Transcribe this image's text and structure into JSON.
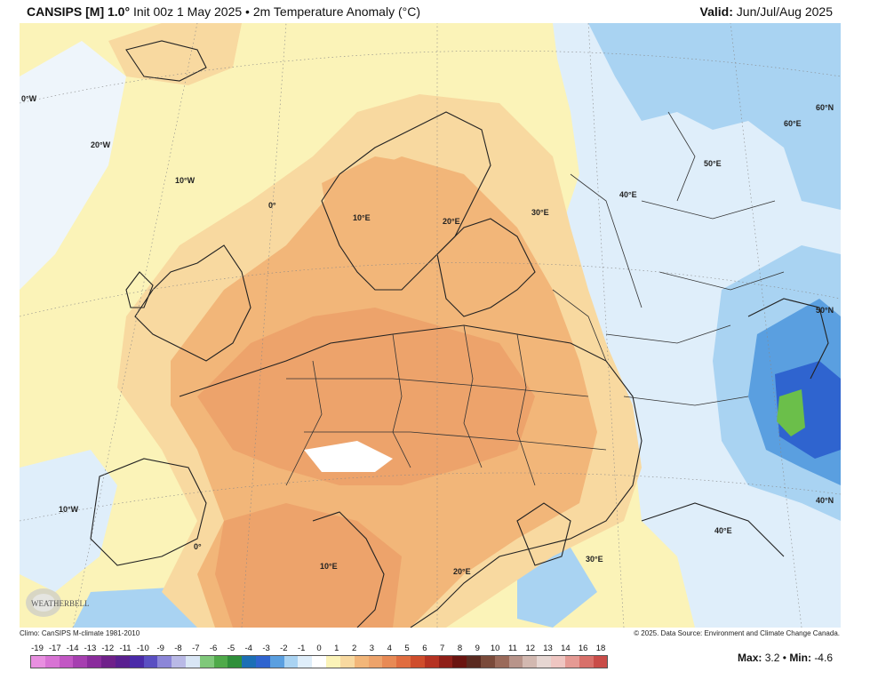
{
  "header": {
    "model": "CANSIPS [M] 1.0°",
    "description": "Init 00z 1 May 2025 • 2m Temperature Anomaly (°C)",
    "valid_label": "Valid:",
    "valid_value": "Jun/Jul/Aug 2025"
  },
  "map": {
    "projection_labels": [
      "0°W",
      "20°W",
      "10°W",
      "0°",
      "10°E",
      "20°E",
      "30°E",
      "40°E",
      "50°E",
      "60°E",
      "60°N",
      "50°N",
      "10°W",
      "0°",
      "10°E",
      "20°E",
      "30°E",
      "40°E",
      "40°N"
    ],
    "colors": {
      "neutral": "#fbf3b8",
      "warm_light": "#f8d9a0",
      "warm_mid": "#f2b679",
      "warm_strong": "#eda36b",
      "cool_light": "#dfeefa",
      "cool_mid": "#a9d3f2",
      "cool_strong": "#5a9fe0",
      "cool_deep": "#2f64cf",
      "cold_core": "#6bbf4a",
      "white": "#ffffff"
    }
  },
  "footer": {
    "climo": "Climo: CanSIPS M-climate 1981-2010",
    "source": "© 2025. Data Source: Environment and Climate Change Canada."
  },
  "logo": {
    "text": "WEATHERBELL"
  },
  "colorbar": {
    "labels": [
      "-19",
      "-17",
      "-14",
      "-13",
      "-12",
      "-11",
      "-10",
      "-9",
      "-8",
      "-7",
      "-6",
      "-5",
      "-4",
      "-3",
      "-2",
      "-1",
      "0",
      "1",
      "2",
      "3",
      "4",
      "5",
      "6",
      "7",
      "8",
      "9",
      "10",
      "11",
      "12",
      "13",
      "14",
      "16",
      "18"
    ],
    "colors": [
      "#e88fe0",
      "#d873d4",
      "#c257c4",
      "#a63fb0",
      "#8a2c9c",
      "#6f218a",
      "#5a2090",
      "#4a2aa8",
      "#5a4fc2",
      "#8c86d8",
      "#b9b9e6",
      "#d9e6f5",
      "#7fc87a",
      "#4faa4a",
      "#2f8f3a",
      "#1c6fb5",
      "#2f64cf",
      "#5a9fe0",
      "#a9d3f2",
      "#dfeefa",
      "#ffffff",
      "#fbf3b8",
      "#f8d9a0",
      "#f2b679",
      "#eda36b",
      "#e88a55",
      "#e06d40",
      "#cf4d2c",
      "#b53222",
      "#8f1f18",
      "#6a1410",
      "#5a2a20",
      "#7a4a3a",
      "#9a6a5a",
      "#b8948a",
      "#d2b8b0",
      "#e6d6d2",
      "#efc6c2",
      "#e59a94",
      "#d8706a",
      "#c94c48"
    ],
    "max_label": "Max:",
    "max_value": "3.2",
    "min_label": "Min:",
    "min_value": "-4.6"
  }
}
